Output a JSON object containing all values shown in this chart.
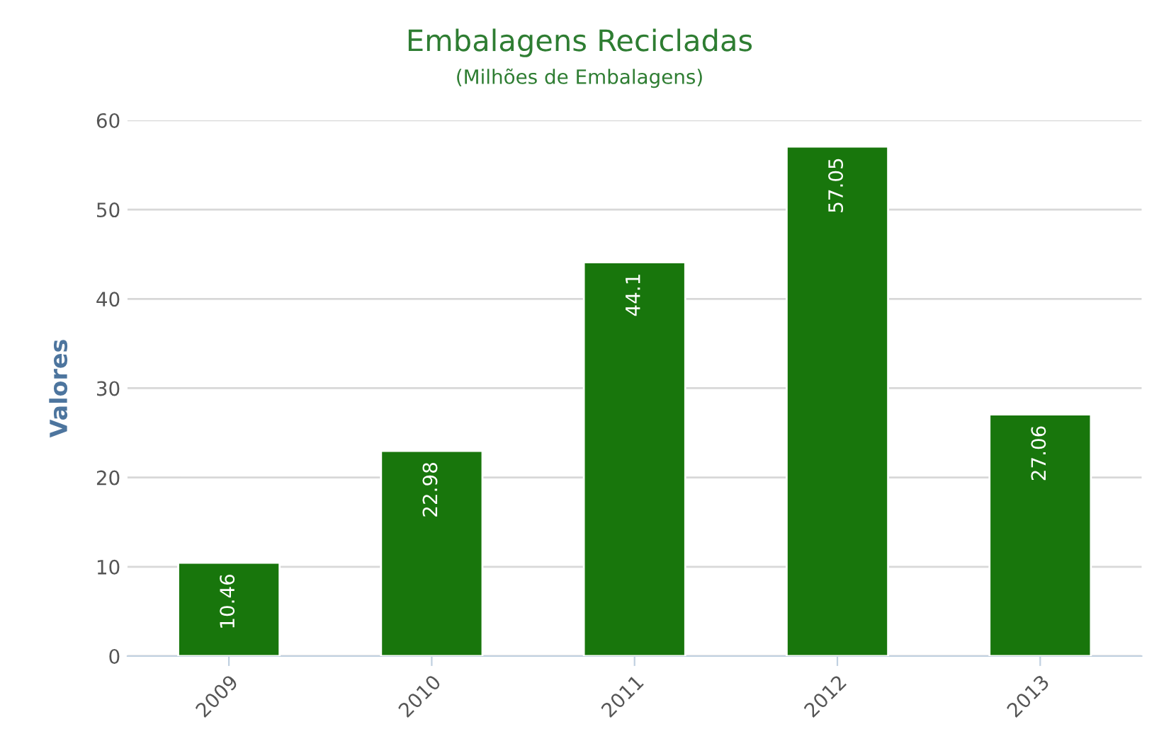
{
  "chart_data": {
    "type": "bar",
    "title": "Embalagens Recicladas",
    "subtitle": "(Milhões de Embalagens)",
    "ylabel": "Valores",
    "categories": [
      "2009",
      "2010",
      "2011",
      "2012",
      "2013"
    ],
    "values": [
      10.46,
      22.98,
      44.1,
      57.05,
      27.06
    ],
    "color": "#18760c",
    "ylim": [
      0,
      60
    ],
    "yticks": [
      0,
      10,
      20,
      30,
      40,
      50,
      60
    ],
    "grid": "y",
    "data_labels": true
  }
}
